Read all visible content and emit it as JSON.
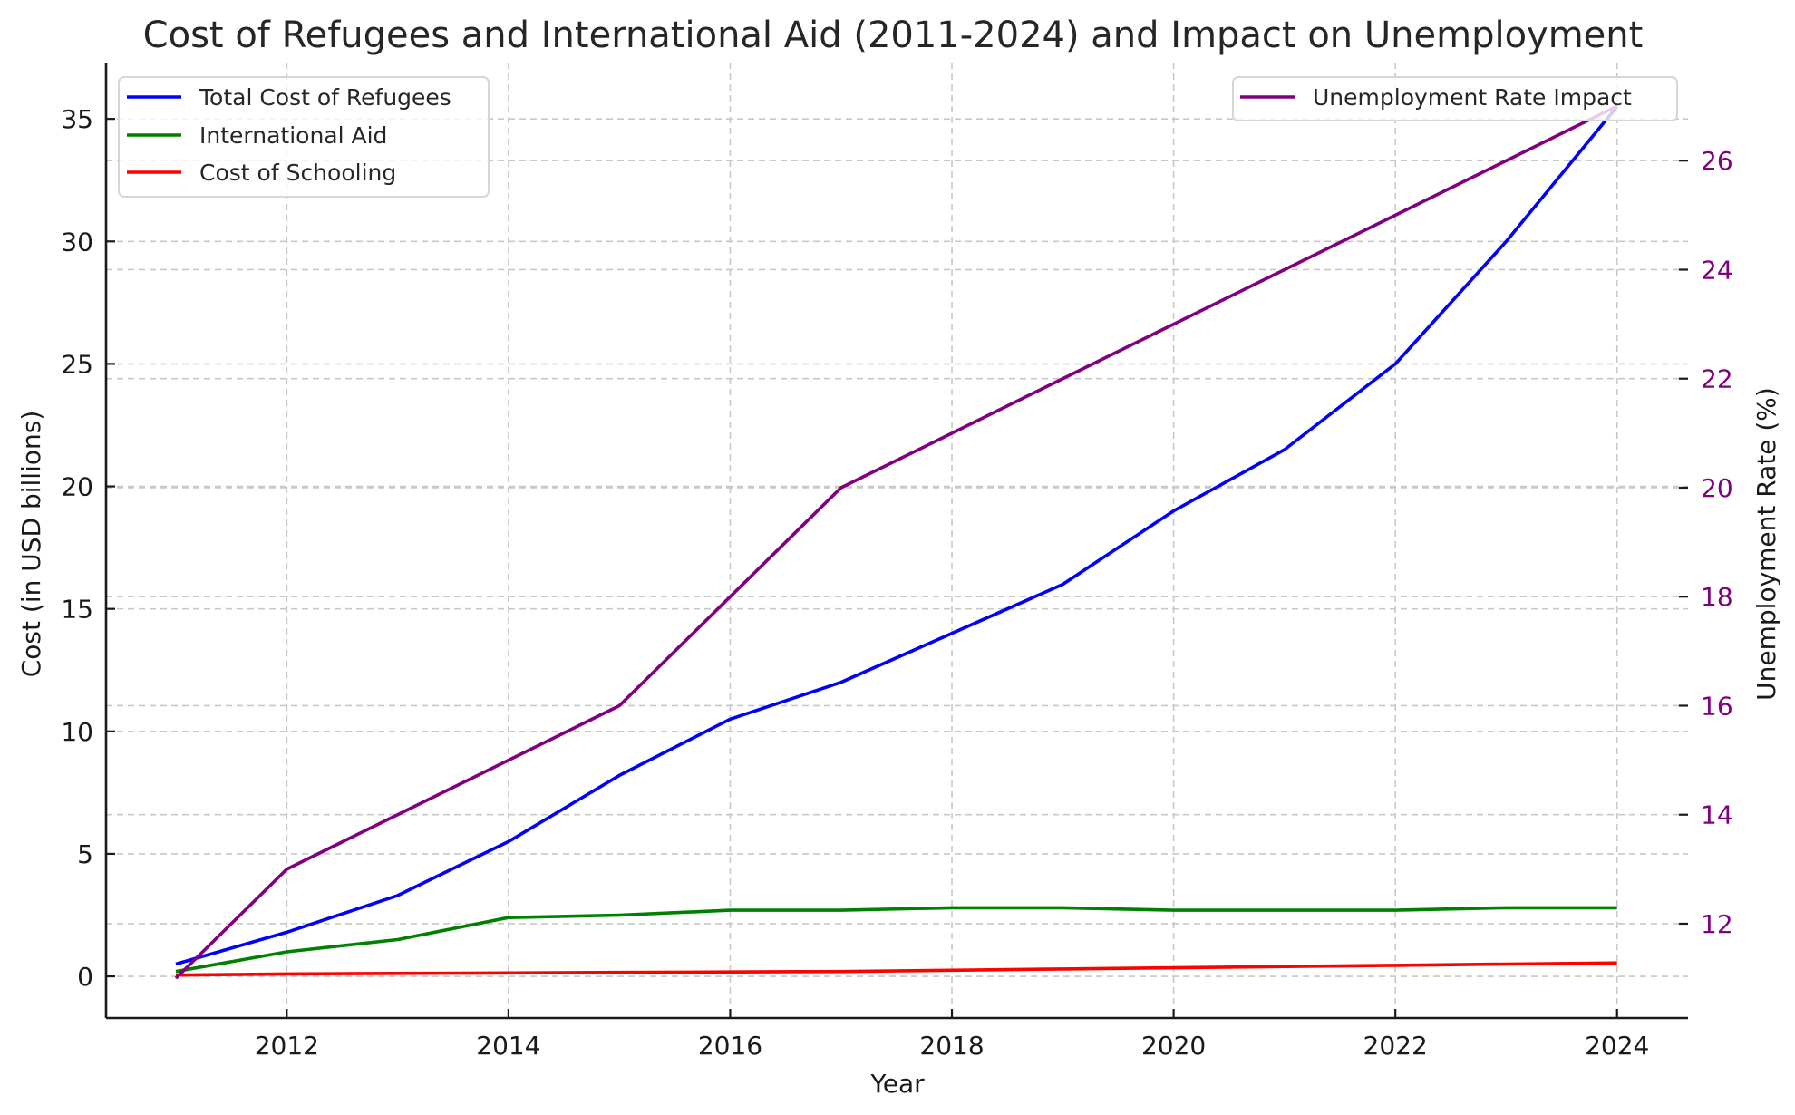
{
  "chart_data": {
    "type": "line",
    "title": "Cost of Refugees and International Aid (2011-2024) and Impact on Unemployment",
    "xlabel": "Year",
    "ylabel": "Cost (in USD billions)",
    "ylabel_right": "Unemployment Rate (%)",
    "x": [
      2011,
      2012,
      2013,
      2014,
      2015,
      2016,
      2017,
      2018,
      2019,
      2020,
      2021,
      2022,
      2023,
      2024
    ],
    "xlim": [
      2010.37,
      2024.64
    ],
    "ylim": [
      -1.7,
      37.3
    ],
    "ylim_right": [
      10.27,
      27.8
    ],
    "xticks": [
      2012,
      2014,
      2016,
      2018,
      2020,
      2022,
      2024
    ],
    "yticks": [
      0,
      5,
      10,
      15,
      20,
      25,
      30,
      35
    ],
    "yticks_right": [
      12,
      14,
      16,
      18,
      20,
      22,
      24,
      26
    ],
    "grid": true,
    "series": [
      {
        "name": "Total Cost of Refugees",
        "axis": "left",
        "color": "#0000ff",
        "values": [
          0.5,
          1.8,
          3.3,
          5.5,
          8.2,
          10.5,
          12.0,
          14.0,
          16.0,
          19.0,
          21.5,
          25.0,
          30.0,
          35.5
        ]
      },
      {
        "name": "International Aid",
        "axis": "left",
        "color": "#008000",
        "values": [
          0.2,
          1.0,
          1.5,
          2.4,
          2.5,
          2.7,
          2.7,
          2.8,
          2.8,
          2.7,
          2.7,
          2.7,
          2.8,
          2.8
        ]
      },
      {
        "name": "Cost of Schooling",
        "axis": "left",
        "color": "#ff0000",
        "values": [
          0.05,
          0.1,
          0.12,
          0.14,
          0.16,
          0.18,
          0.2,
          0.25,
          0.3,
          0.35,
          0.4,
          0.45,
          0.5,
          0.55
        ]
      },
      {
        "name": "Unemployment Rate Impact",
        "axis": "right",
        "color": "#800080",
        "values": [
          11,
          13,
          14,
          15,
          16,
          18,
          20,
          21,
          22,
          23,
          24,
          25,
          26,
          27
        ]
      }
    ],
    "legends": [
      {
        "placement": "top-left",
        "entries": [
          "Total Cost of Refugees",
          "International Aid",
          "Cost of Schooling"
        ]
      },
      {
        "placement": "top-right",
        "entries": [
          "Unemployment Rate Impact"
        ]
      }
    ],
    "right_tick_color": "#800080"
  }
}
